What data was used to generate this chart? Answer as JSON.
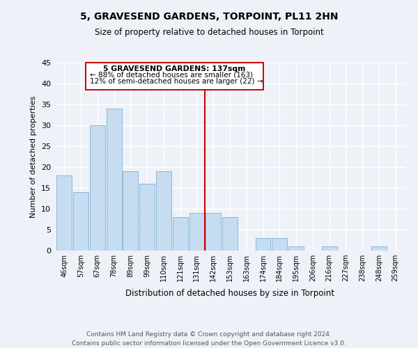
{
  "title": "5, GRAVESEND GARDENS, TORPOINT, PL11 2HN",
  "subtitle": "Size of property relative to detached houses in Torpoint",
  "xlabel": "Distribution of detached houses by size in Torpoint",
  "ylabel": "Number of detached properties",
  "bar_color": "#c6dcf0",
  "bar_edge_color": "#8ab8d8",
  "bin_labels": [
    "46sqm",
    "57sqm",
    "67sqm",
    "78sqm",
    "89sqm",
    "99sqm",
    "110sqm",
    "121sqm",
    "131sqm",
    "142sqm",
    "153sqm",
    "163sqm",
    "174sqm",
    "184sqm",
    "195sqm",
    "206sqm",
    "216sqm",
    "227sqm",
    "238sqm",
    "248sqm",
    "259sqm"
  ],
  "bar_heights": [
    18,
    14,
    30,
    34,
    19,
    16,
    19,
    8,
    9,
    9,
    8,
    0,
    3,
    3,
    1,
    0,
    1,
    0,
    0,
    1,
    0
  ],
  "vline_x": 8.5,
  "vline_color": "#cc0000",
  "ylim": [
    0,
    45
  ],
  "annotation_title": "5 GRAVESEND GARDENS: 137sqm",
  "annotation_line1": "← 88% of detached houses are smaller (163)",
  "annotation_line2": "12% of semi-detached houses are larger (22) →",
  "footnote1": "Contains HM Land Registry data © Crown copyright and database right 2024.",
  "footnote2": "Contains public sector information licensed under the Open Government Licence v3.0.",
  "bg_color": "#eef2f8"
}
